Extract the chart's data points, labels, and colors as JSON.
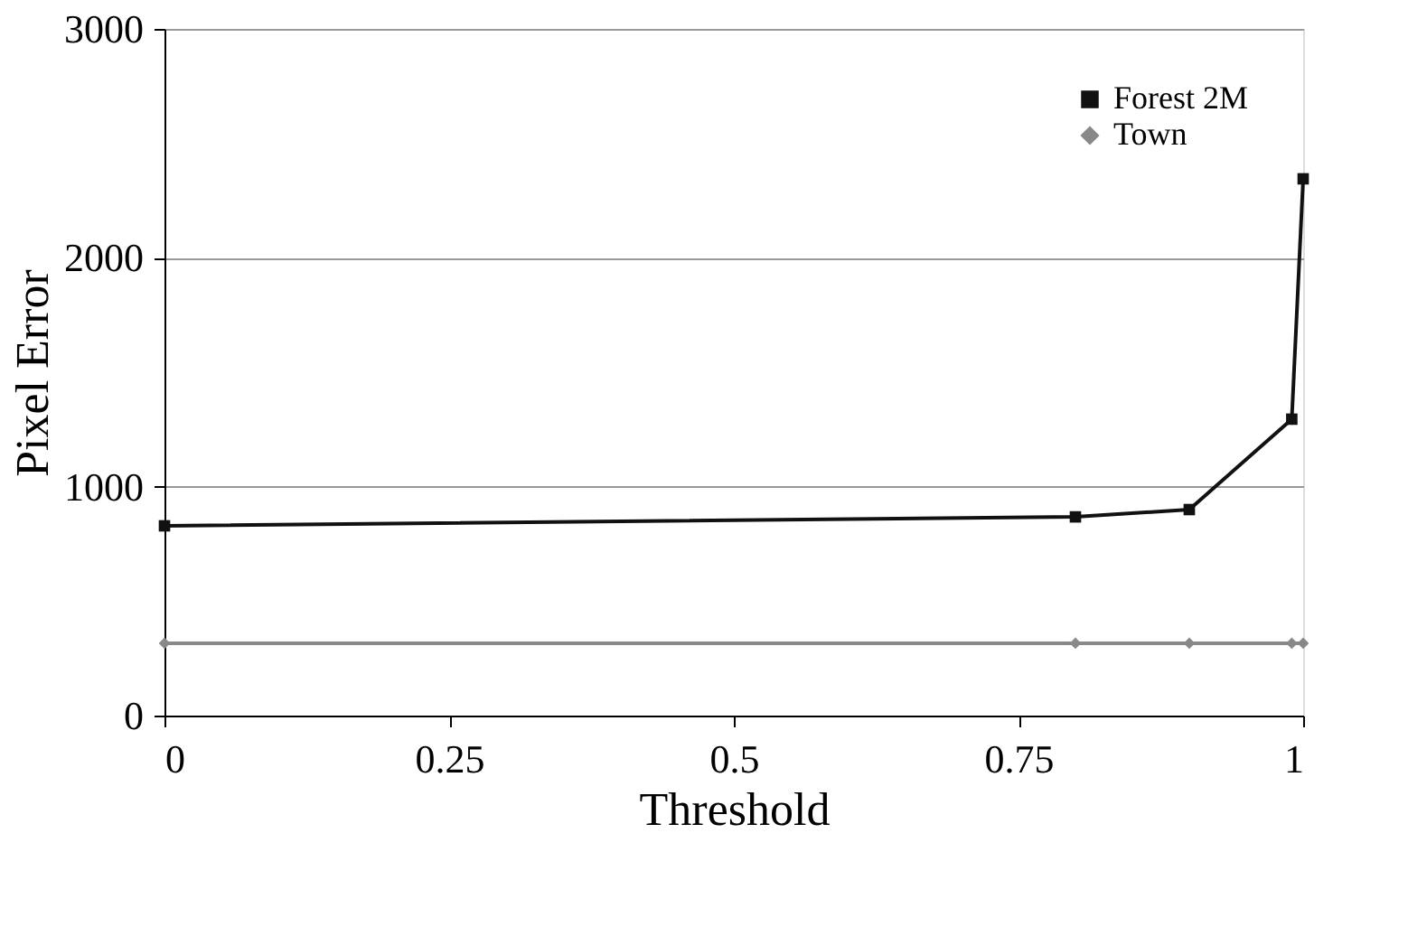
{
  "chart_data": {
    "type": "line",
    "xlabel": "Threshold",
    "ylabel": "Pixel Error",
    "x": [
      0,
      0.8,
      0.9,
      0.99,
      1
    ],
    "series": [
      {
        "name": "Forest 2M",
        "color": "#111111",
        "values": [
          829,
          868,
          900,
          1295,
          2345
        ],
        "marker": "square"
      },
      {
        "name": "Town",
        "color": "#888888",
        "values": [
          316,
          316,
          316,
          316,
          316
        ],
        "marker": "diamond"
      }
    ],
    "xlim": [
      0,
      1
    ],
    "xticks": [
      0,
      0.25,
      0.5,
      0.75,
      1
    ],
    "ylim": [
      0,
      3000
    ],
    "yticks": [
      0,
      1000,
      2000,
      3000
    ],
    "grid": "y",
    "legend": "top right",
    "line_style": "solid"
  }
}
